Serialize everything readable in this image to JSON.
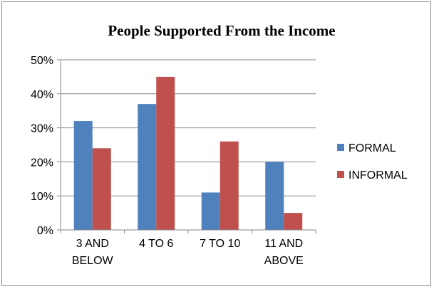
{
  "chart_data": {
    "type": "bar",
    "title": "People Supported From the Income",
    "categories": [
      [
        "3 AND",
        "BELOW"
      ],
      [
        "4 TO 6"
      ],
      [
        "7 TO 10"
      ],
      [
        "11 AND",
        "ABOVE"
      ]
    ],
    "series": [
      {
        "name": "FORMAL",
        "color": "#4F81BD",
        "values": [
          32,
          37,
          11,
          20
        ]
      },
      {
        "name": "INFORMAL",
        "color": "#C0504D",
        "values": [
          24,
          45,
          26,
          5
        ]
      }
    ],
    "y_ticks": [
      "0%",
      "10%",
      "20%",
      "30%",
      "40%",
      "50%"
    ],
    "ylim": [
      0,
      50
    ],
    "grid": true,
    "legend_position": "right"
  }
}
